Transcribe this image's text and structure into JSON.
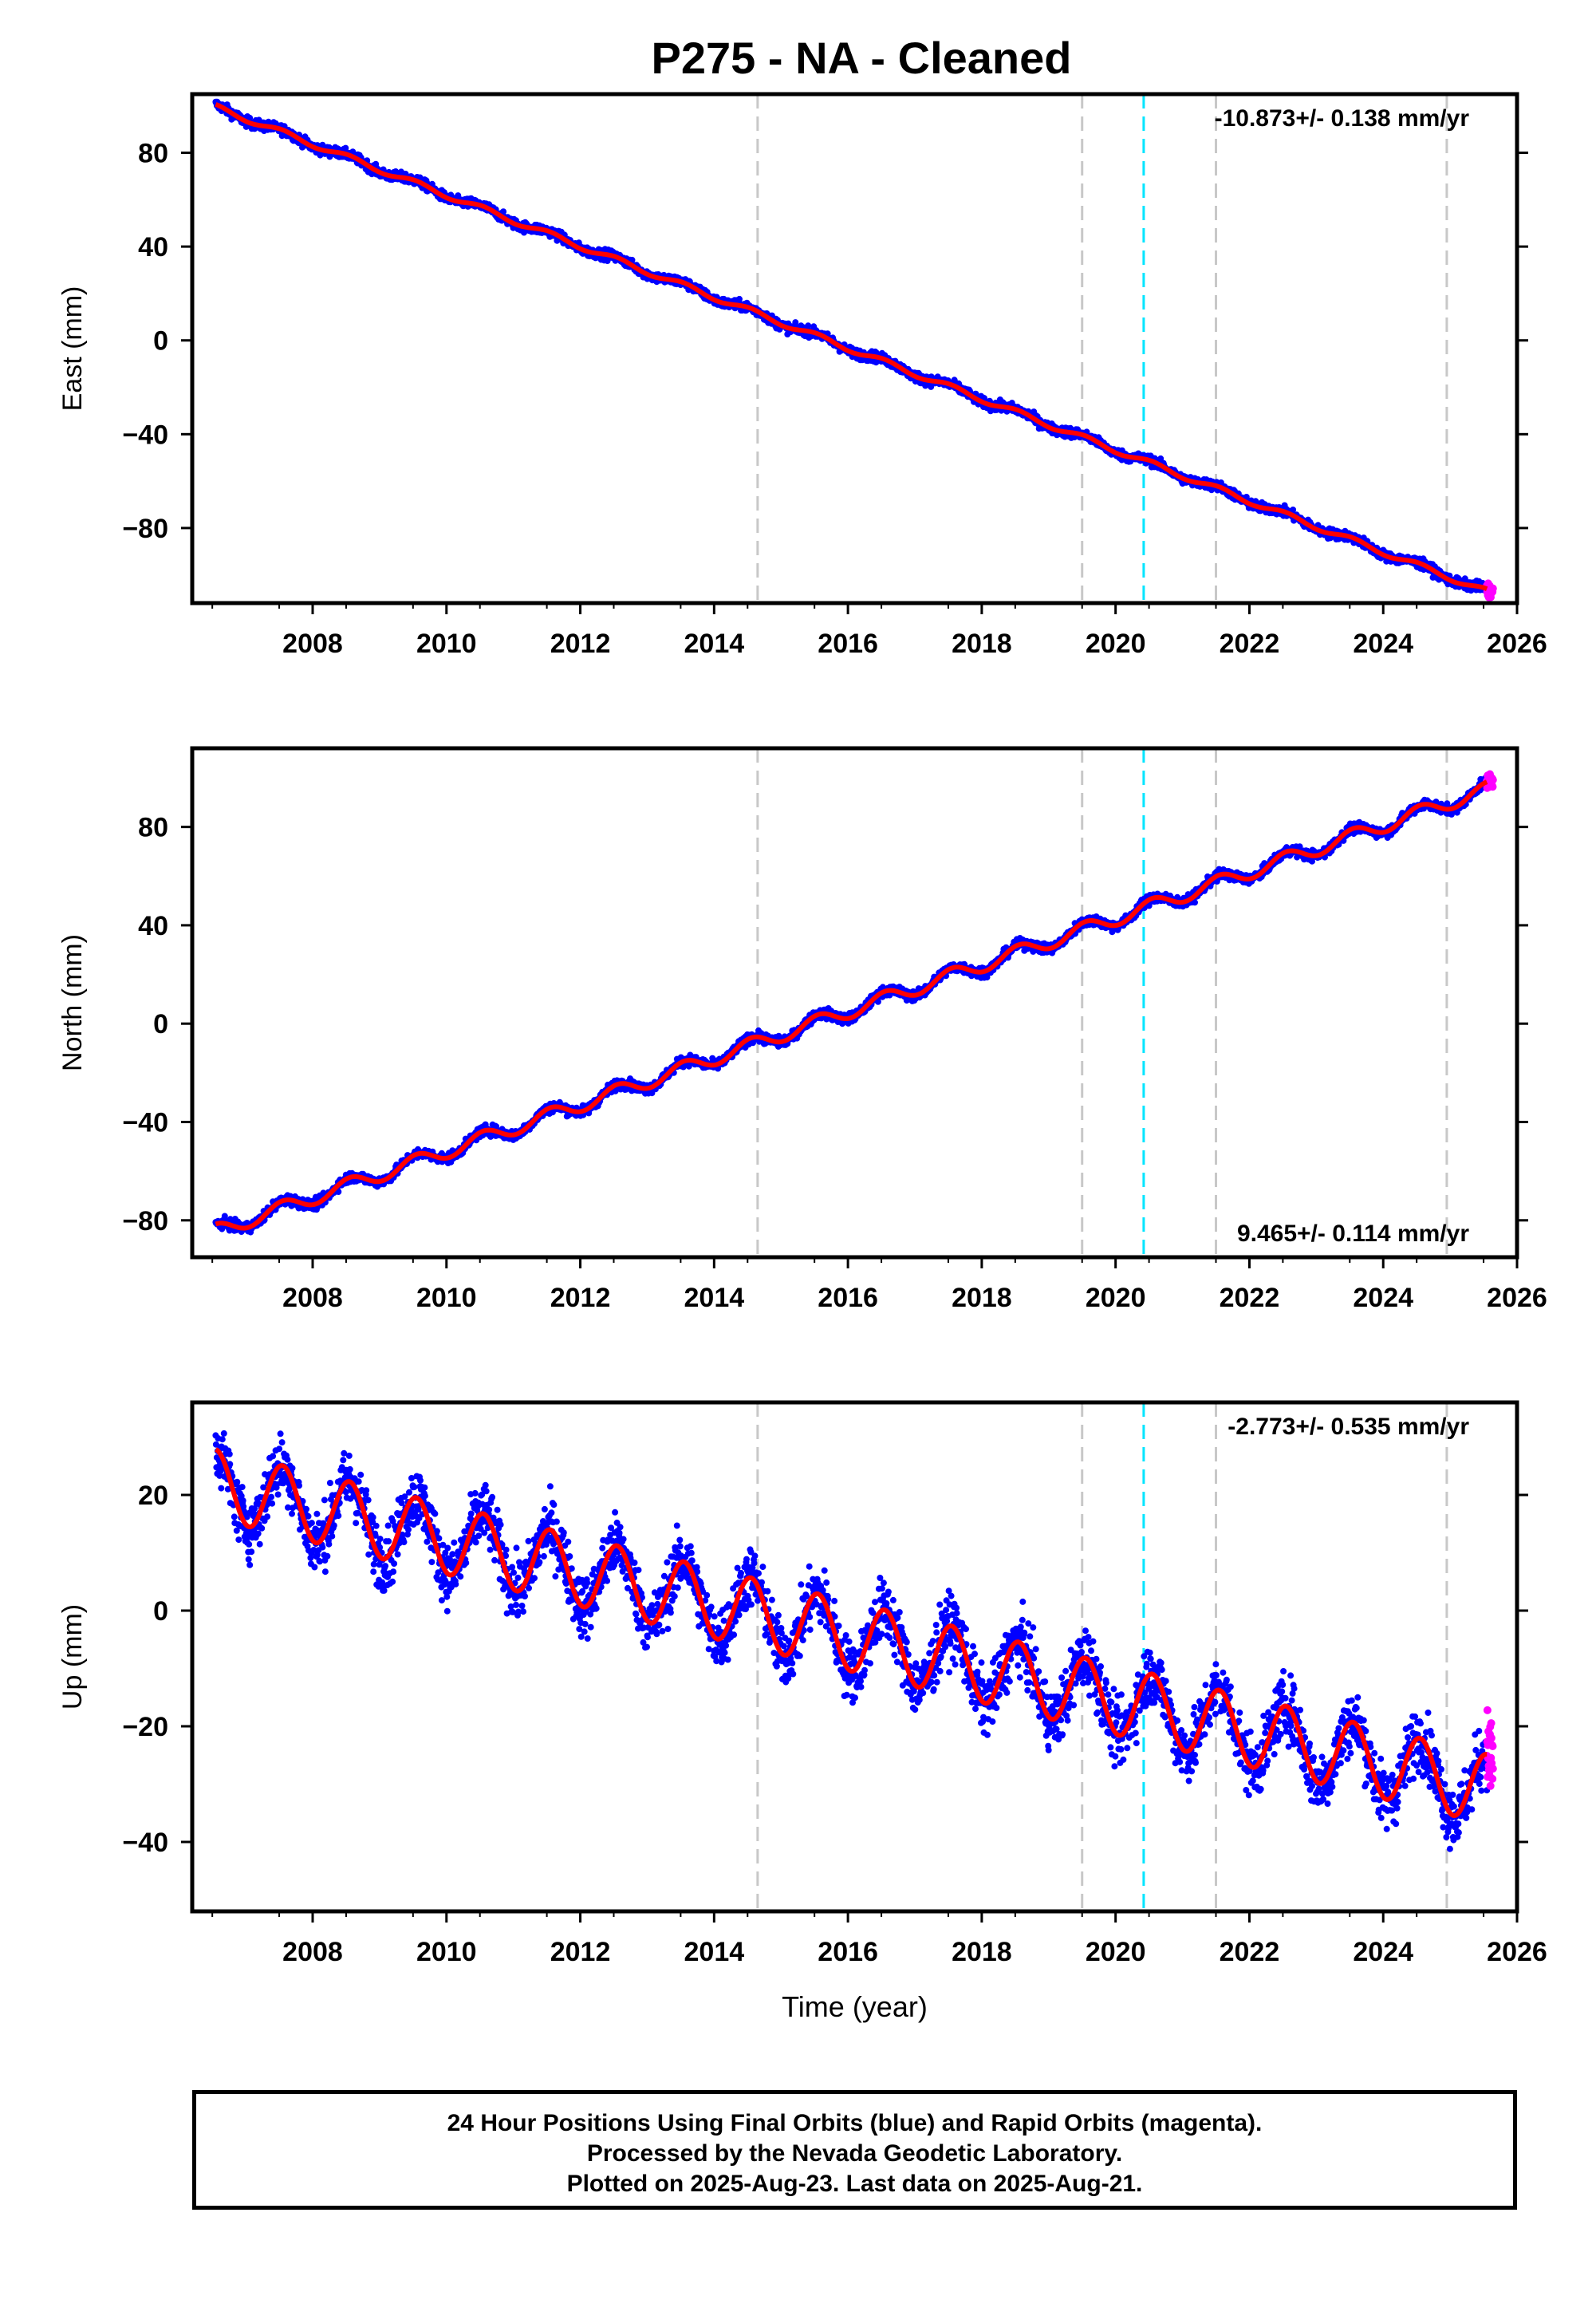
{
  "title": "P275  - NA - Cleaned",
  "caption": {
    "line1": "24 Hour Positions Using Final Orbits (blue) and Rapid Orbits (magenta).",
    "line2": "Processed by the Nevada Geodetic Laboratory.",
    "line3": "Plotted on 2025-Aug-23. Last data on 2025-Aug-21."
  },
  "colors": {
    "final": "#0000ff",
    "rapid": "#ff00ff",
    "model": "#ff0000",
    "event": "#c8c8c8",
    "antenna": "#00e5ff"
  },
  "chart_data": [
    {
      "type": "scatter",
      "ylabel": "East (mm)",
      "xlabel": "",
      "xlim": [
        2006.2,
        2026.0
      ],
      "ylim": [
        -112,
        105
      ],
      "yticks": [
        -80,
        -40,
        0,
        40,
        80
      ],
      "xticks": [
        2008,
        2010,
        2012,
        2014,
        2016,
        2018,
        2020,
        2022,
        2024,
        2026
      ],
      "rate_text": "-10.873+/- 0.138 mm/yr",
      "rate_position": "top-right",
      "trend": {
        "t0": 2006.5,
        "y0": 100,
        "rate": -10.873,
        "annual_amp": 1.2,
        "noise": 1.5
      },
      "data_start": 2006.55,
      "data_end": 2025.55,
      "rapid_start": 2025.55,
      "rapid_end": 2025.64,
      "event_lines": [
        2014.65,
        2019.5,
        2021.5,
        2024.95
      ],
      "antenna_lines": [
        2020.42
      ]
    },
    {
      "type": "scatter",
      "ylabel": "North (mm)",
      "xlabel": "",
      "xlim": [
        2006.2,
        2026.0
      ],
      "ylim": [
        -95,
        112
      ],
      "yticks": [
        -80,
        -40,
        0,
        40,
        80
      ],
      "xticks": [
        2008,
        2010,
        2012,
        2014,
        2016,
        2018,
        2020,
        2022,
        2024,
        2026
      ],
      "rate_text": "9.465+/- 0.114 mm/yr",
      "rate_position": "bottom-right",
      "trend": {
        "t0": 2006.5,
        "y0": -85,
        "rate": 9.465,
        "annual_amp": 3.0,
        "noise": 1.5
      },
      "data_start": 2006.55,
      "data_end": 2025.55,
      "rapid_start": 2025.55,
      "rapid_end": 2025.64,
      "event_lines": [
        2014.65,
        2019.5,
        2021.5,
        2024.95
      ],
      "antenna_lines": [
        2020.42
      ]
    },
    {
      "type": "scatter",
      "ylabel": "Up (mm)",
      "xlabel": "Time (year)",
      "xlim": [
        2006.2,
        2026.0
      ],
      "ylim": [
        -52,
        36
      ],
      "yticks": [
        -40,
        -20,
        0,
        20
      ],
      "xticks": [
        2008,
        2010,
        2012,
        2014,
        2016,
        2018,
        2020,
        2022,
        2024,
        2026
      ],
      "rate_text": "-2.773+/- 0.535 mm/yr",
      "rate_position": "top-right",
      "trend": {
        "t0": 2006.5,
        "y0": 22,
        "rate": -2.773,
        "annual_amp": 6.0,
        "noise": 3.8
      },
      "data_start": 2006.55,
      "data_end": 2025.55,
      "rapid_start": 2025.55,
      "rapid_end": 2025.64,
      "event_lines": [
        2014.65,
        2019.5,
        2021.5,
        2024.95
      ],
      "antenna_lines": [
        2020.42
      ]
    }
  ]
}
